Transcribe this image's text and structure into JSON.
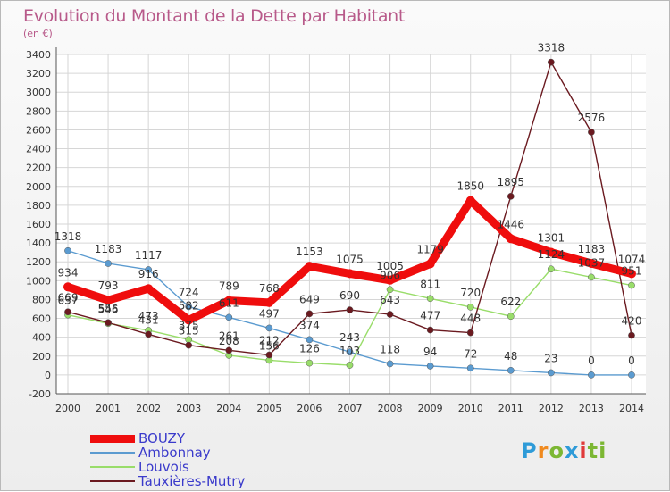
{
  "title": "Evolution du Montant de la Dette par Habitant",
  "unit": "(en €)",
  "logo": {
    "text": "Proxiti",
    "letters": [
      "P",
      "r",
      "o",
      "x",
      "i",
      "ti"
    ]
  },
  "chart_data": {
    "type": "line",
    "title": "Evolution du Montant de la Dette par Habitant",
    "ylabel": "(en €)",
    "xlabel": "",
    "x": [
      "2000",
      "2001",
      "2002",
      "2003",
      "2004",
      "2005",
      "2006",
      "2007",
      "2008",
      "2009",
      "2010",
      "2011",
      "2012",
      "2013",
      "2014"
    ],
    "ylim": [
      -200,
      3400
    ],
    "yticks": [
      -200,
      0,
      200,
      400,
      600,
      800,
      1000,
      1200,
      1400,
      1600,
      1800,
      2000,
      2200,
      2400,
      2600,
      2800,
      3000,
      3200,
      3400
    ],
    "grid": true,
    "legend_position": "bottom-left",
    "series": [
      {
        "name": "BOUZY",
        "color": "#ef0d0d",
        "values": [
          934,
          793,
          916,
          582,
          789,
          768,
          1153,
          1075,
          1005,
          1179,
          1850,
          1446,
          1301,
          1183,
          1074
        ]
      },
      {
        "name": "Ambonnay",
        "color": "#5b9bd0",
        "values": [
          1318,
          1183,
          1117,
          724,
          611,
          497,
          374,
          243,
          118,
          94,
          72,
          48,
          23,
          0,
          0
        ]
      },
      {
        "name": "Louvois",
        "color": "#99dd6a",
        "values": [
          637,
          546,
          473,
          375,
          208,
          156,
          126,
          103,
          906,
          811,
          720,
          622,
          1124,
          1037,
          951
        ]
      },
      {
        "name": "Tauxières-Mutry",
        "color": "#6b1a20",
        "values": [
          669,
          555,
          431,
          315,
          261,
          212,
          649,
          690,
          643,
          477,
          448,
          1895,
          3318,
          2576,
          420
        ]
      }
    ]
  }
}
